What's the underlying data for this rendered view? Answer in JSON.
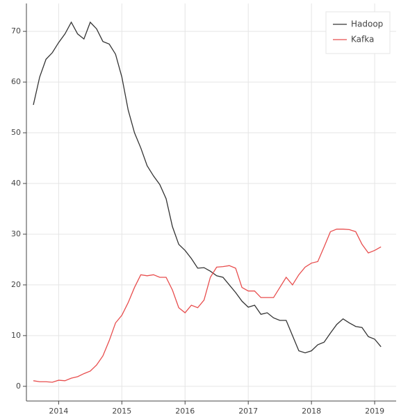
{
  "chart_data": {
    "type": "line",
    "x": [
      2013.6,
      2013.7,
      2013.8,
      2013.9,
      2014.0,
      2014.1,
      2014.2,
      2014.3,
      2014.4,
      2014.5,
      2014.6,
      2014.7,
      2014.8,
      2014.9,
      2015.0,
      2015.1,
      2015.2,
      2015.3,
      2015.4,
      2015.5,
      2015.6,
      2015.7,
      2015.8,
      2015.9,
      2016.0,
      2016.1,
      2016.2,
      2016.3,
      2016.4,
      2016.5,
      2016.6,
      2016.7,
      2016.8,
      2016.9,
      2017.0,
      2017.1,
      2017.2,
      2017.3,
      2017.4,
      2017.5,
      2017.6,
      2017.7,
      2017.8,
      2017.9,
      2018.0,
      2018.1,
      2018.2,
      2018.3,
      2018.4,
      2018.5,
      2018.6,
      2018.7,
      2018.8,
      2018.9,
      2019.0,
      2019.1
    ],
    "series": [
      {
        "name": "Hadoop",
        "color": "#333333",
        "values": [
          55.5,
          61,
          64.5,
          65.8,
          67.8,
          69.5,
          71.8,
          69.5,
          68.5,
          71.8,
          70.5,
          68,
          67.5,
          65.5,
          61,
          54.5,
          50,
          47,
          43.5,
          41.5,
          39.8,
          37,
          31.5,
          28,
          26.8,
          25.2,
          23.3,
          23.4,
          22.7,
          21.8,
          21.5,
          20,
          18.5,
          16.8,
          15.6,
          16,
          14.2,
          14.5,
          13.5,
          13,
          13,
          10,
          7,
          6.6,
          7,
          8.2,
          8.7,
          10.5,
          12.2,
          13.3,
          12.5,
          11.8,
          11.6,
          9.8,
          9.3,
          7.8
        ]
      },
      {
        "name": "Kafka",
        "color": "#e84d4d",
        "values": [
          1.1,
          0.9,
          0.9,
          0.8,
          1.2,
          1.1,
          1.6,
          1.9,
          2.5,
          3,
          4.2,
          6,
          9,
          12.5,
          14,
          16.5,
          19.5,
          22,
          21.8,
          22,
          21.5,
          21.5,
          19,
          15.5,
          14.5,
          16,
          15.5,
          17,
          21.5,
          23.5,
          23.6,
          23.8,
          23.3,
          19.5,
          18.8,
          18.8,
          17.5,
          17.5,
          17.5,
          19.5,
          21.5,
          20,
          22,
          23.5,
          24.3,
          24.6,
          27.5,
          30.5,
          31,
          31,
          30.9,
          30.5,
          28,
          26.3,
          26.8,
          27.5
        ]
      }
    ],
    "xlim": [
      2013.49,
      2019.34
    ],
    "xticks": [
      2014,
      2015,
      2016,
      2017,
      2018,
      2019
    ],
    "ylim": [
      -2.9,
      75.5
    ],
    "yticks": [
      0,
      10,
      20,
      30,
      40,
      50,
      60,
      70
    ],
    "grid": true,
    "legend": "top_right"
  }
}
